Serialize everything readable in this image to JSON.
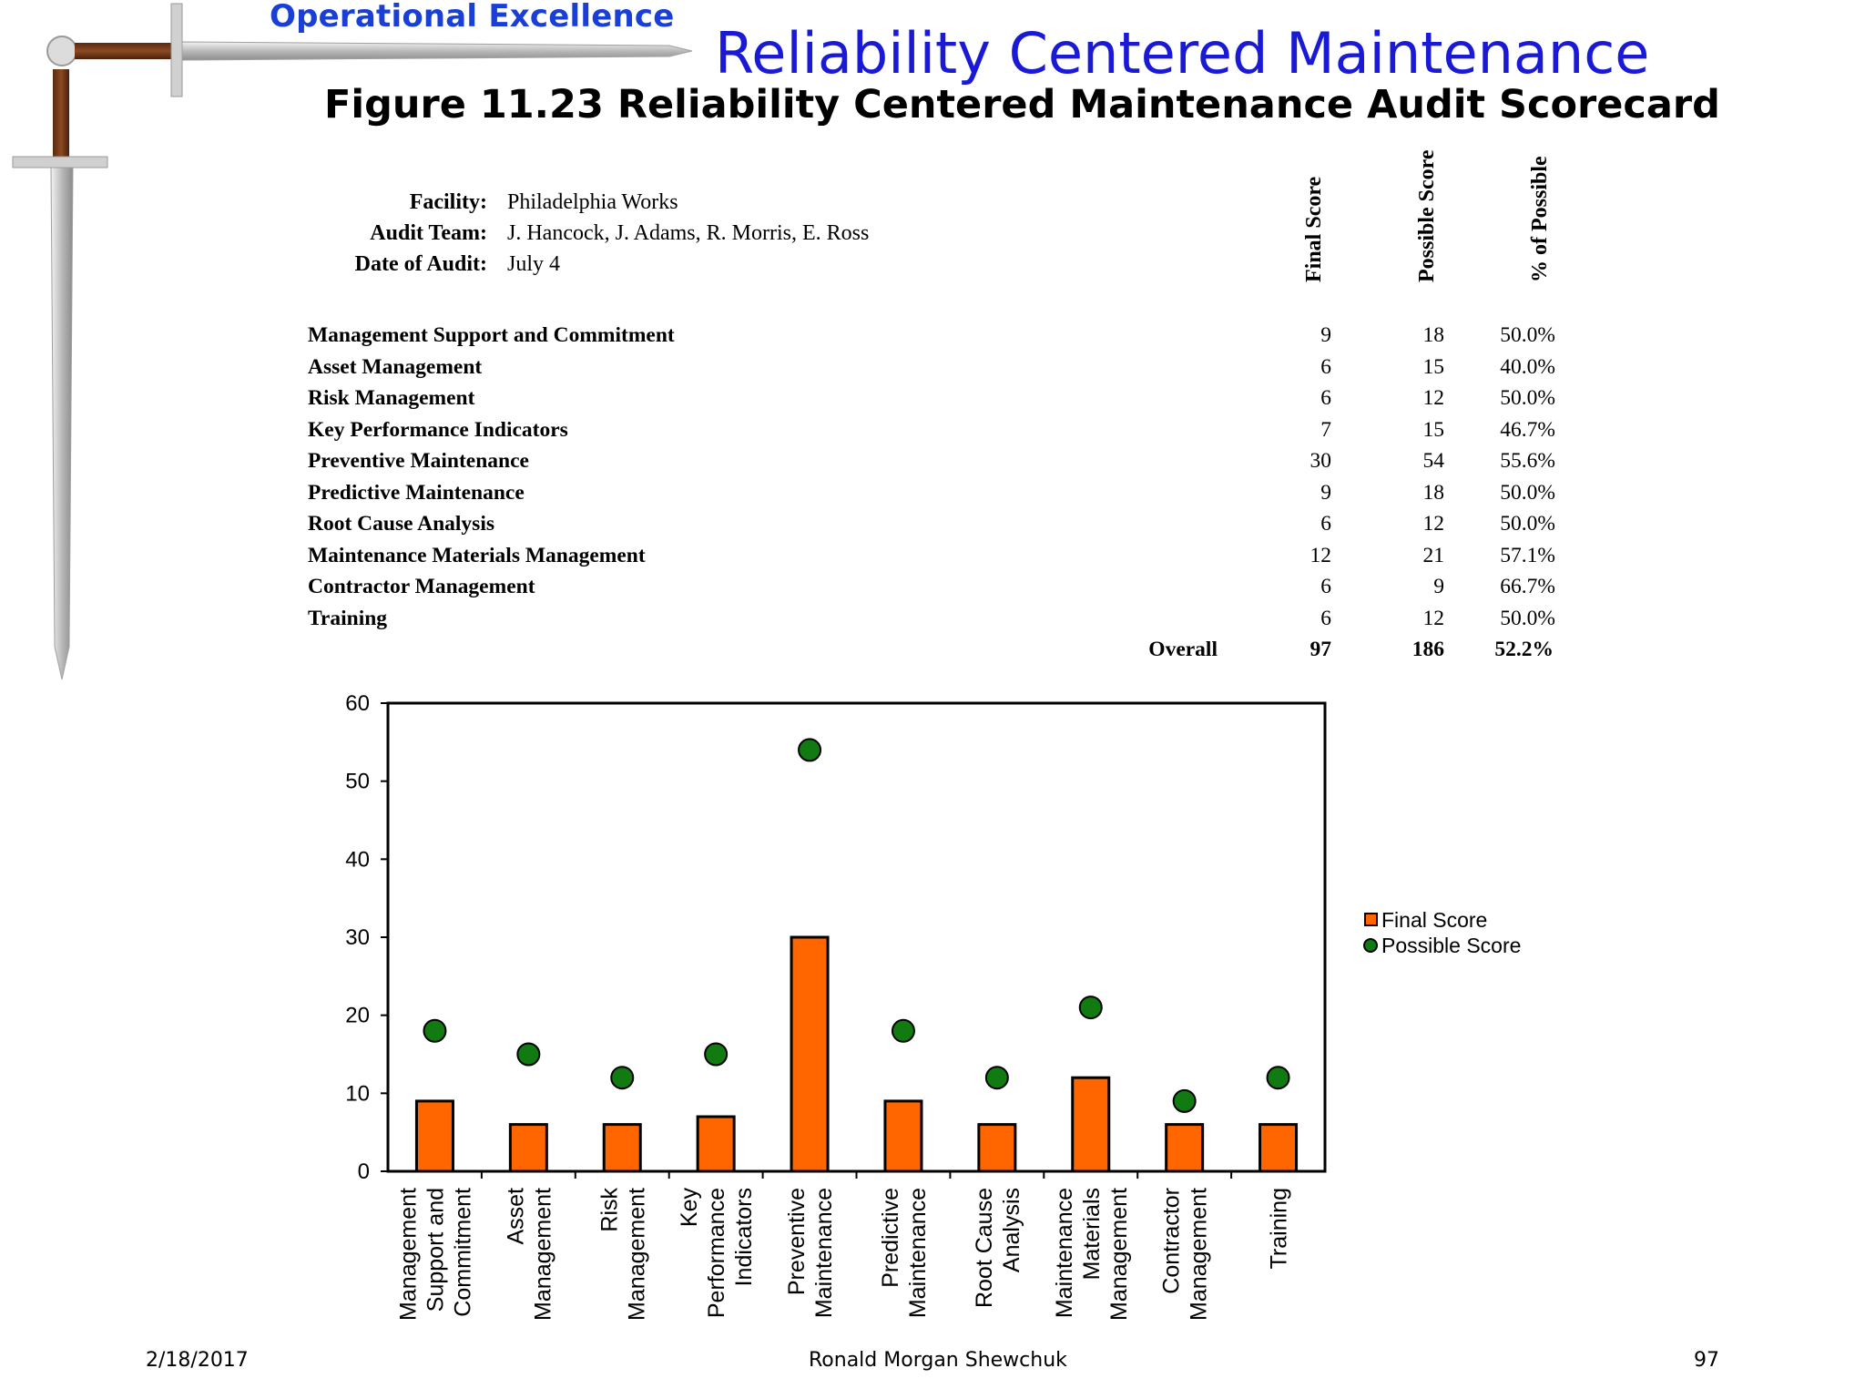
{
  "header": {
    "brand": "Operational Excellence",
    "title": "Reliability Centered Maintenance",
    "figure_title": "Figure 11.23  Reliability Centered Maintenance Audit Scorecard"
  },
  "info": {
    "facility_label": "Facility:",
    "facility_value": "Philadelphia Works",
    "team_label": "Audit Team:",
    "team_value": "J. Hancock, J. Adams, R. Morris, E. Ross",
    "date_label": "Date of Audit:",
    "date_value": "July 4"
  },
  "table": {
    "col_final": "Final Score",
    "col_possible": "Possible Score",
    "col_pct": "% of Possible",
    "rows": [
      {
        "label": "Management Support and Commitment",
        "final": "9",
        "possible": "18",
        "pct": "50.0%"
      },
      {
        "label": "Asset Management",
        "final": "6",
        "possible": "15",
        "pct": "40.0%"
      },
      {
        "label": "Risk Management",
        "final": "6",
        "possible": "12",
        "pct": "50.0%"
      },
      {
        "label": "Key Performance Indicators",
        "final": "7",
        "possible": "15",
        "pct": "46.7%"
      },
      {
        "label": "Preventive Maintenance",
        "final": "30",
        "possible": "54",
        "pct": "55.6%"
      },
      {
        "label": "Predictive Maintenance",
        "final": "9",
        "possible": "18",
        "pct": "50.0%"
      },
      {
        "label": "Root Cause Analysis",
        "final": "6",
        "possible": "12",
        "pct": "50.0%"
      },
      {
        "label": "Maintenance Materials Management",
        "final": "12",
        "possible": "21",
        "pct": "57.1%"
      },
      {
        "label": "Contractor Management",
        "final": "6",
        "possible": "9",
        "pct": "66.7%"
      },
      {
        "label": "Training",
        "final": "6",
        "possible": "12",
        "pct": "50.0%"
      }
    ],
    "overall_label": "Overall",
    "overall_final": "97",
    "overall_possible": "186",
    "overall_pct": "52.2%"
  },
  "chart_data": {
    "type": "bar",
    "categories": [
      [
        "Management",
        "Support and",
        "Commitment"
      ],
      [
        "Asset",
        "Management"
      ],
      [
        "Risk",
        "Management"
      ],
      [
        "Key",
        "Performance",
        "Indicators"
      ],
      [
        "Preventive",
        "Maintenance"
      ],
      [
        "Predictive",
        "Maintenance"
      ],
      [
        "Root Cause",
        "Analysis"
      ],
      [
        "Maintenance",
        "Materials",
        "Management"
      ],
      [
        "Contractor",
        "Management"
      ],
      [
        "Training"
      ]
    ],
    "series": [
      {
        "name": "Final Score",
        "type": "bar",
        "color": "#ff6600",
        "values": [
          9,
          6,
          6,
          7,
          30,
          9,
          6,
          12,
          6,
          6
        ]
      },
      {
        "name": "Possible Score",
        "type": "scatter",
        "color": "#117a11",
        "values": [
          18,
          15,
          12,
          15,
          54,
          18,
          12,
          21,
          9,
          12
        ]
      }
    ],
    "ylim": [
      0,
      60
    ],
    "yticks": [
      0,
      10,
      20,
      30,
      40,
      50,
      60
    ],
    "legend": "right",
    "grid": false
  },
  "footer": {
    "date": "2/18/2017",
    "author": "Ronald Morgan Shewchuk",
    "page": "97"
  }
}
